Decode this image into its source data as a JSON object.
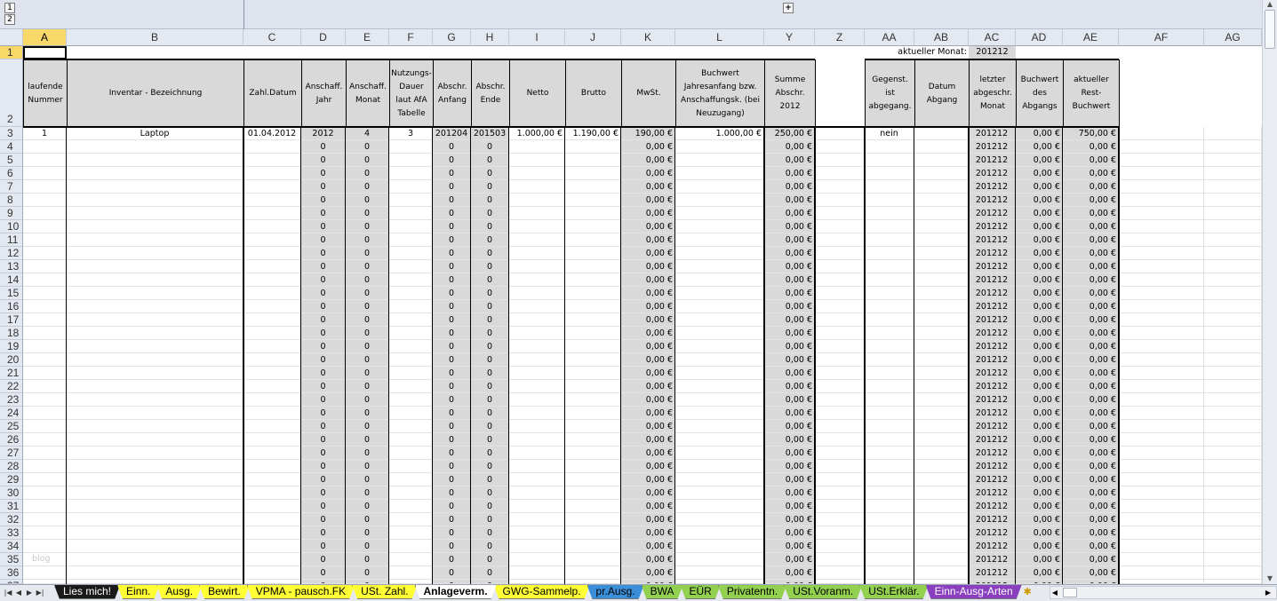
{
  "outline": {
    "level1": "1",
    "level2": "2",
    "expand": "+"
  },
  "columns": [
    "A",
    "B",
    "C",
    "D",
    "E",
    "F",
    "G",
    "H",
    "I",
    "J",
    "K",
    "L",
    "Y",
    "Z",
    "AA",
    "AB",
    "AC",
    "AD",
    "AE",
    "AF",
    "AG"
  ],
  "selected_column": "A",
  "selected_row": 1,
  "row1": {
    "label": "aktueller Monat:",
    "value": "201212"
  },
  "headers": {
    "A": "laufende Nummer",
    "B": "Inventar - Bezeichnung",
    "C": "Zahl.Datum",
    "D": "Anschaff. Jahr",
    "E": "Anschaff. Monat",
    "F": "Nutzungs-Dauer laut AfA Tabelle",
    "G": "Abschr. Anfang",
    "H": "Abschr. Ende",
    "I": "Netto",
    "J": "Brutto",
    "K": "MwSt.",
    "L": "Buchwert Jahresanfang bzw. Anschaffungsk. (bei Neuzugang)",
    "Y": "Summe Abschr. 2012",
    "AA": "Gegenst. ist abgegang.",
    "AB": "Datum Abgang",
    "AC": "letzter abgeschr. Monat",
    "AD": "Buchwert des Abgangs",
    "AE": "aktueller Rest-Buchwert"
  },
  "row3": {
    "A": "1",
    "B": "Laptop",
    "C": "01.04.2012",
    "D": "2012",
    "E": "4",
    "F": "3",
    "G": "201204",
    "H": "201503",
    "I": "1.000,00 €",
    "J": "1.190,00 €",
    "K": "190,00 €",
    "L": "1.000,00 €",
    "Y": "250,00 €",
    "AA": "nein",
    "AC": "201212",
    "AD": "0,00 €",
    "AE": "750,00 €"
  },
  "repeated_rows": {
    "from": 4,
    "to": 37,
    "cells": {
      "D": "0",
      "E": "0",
      "G": "0",
      "H": "0",
      "K": "0,00 €",
      "Y": "0,00 €",
      "AC": "201212",
      "AD": "0,00 €",
      "AE": "0,00 €"
    }
  },
  "watermark": {
    "row": 35,
    "text": "blog"
  },
  "tabs": [
    {
      "label": "Lies mich!",
      "bg": "#1a1a1a",
      "fg": "#ffffff"
    },
    {
      "label": "Einn.",
      "bg": "#ffff33",
      "fg": "#000000"
    },
    {
      "label": "Ausg.",
      "bg": "#ffff33",
      "fg": "#000000"
    },
    {
      "label": "Bewirt.",
      "bg": "#ffff33",
      "fg": "#000000"
    },
    {
      "label": "VPMA - pausch.FK",
      "bg": "#ffff33",
      "fg": "#000000"
    },
    {
      "label": "USt. Zahl.",
      "bg": "#ffff33",
      "fg": "#000000"
    },
    {
      "label": "Anlageverm.",
      "bg": "#ffffff",
      "fg": "#000000",
      "active": true
    },
    {
      "label": "GWG-Sammelp.",
      "bg": "#ffff33",
      "fg": "#000000"
    },
    {
      "label": "pr.Ausg.",
      "bg": "#3b8fd8",
      "fg": "#000000"
    },
    {
      "label": "BWA",
      "bg": "#92d050",
      "fg": "#000000"
    },
    {
      "label": "EÜR",
      "bg": "#92d050",
      "fg": "#000000"
    },
    {
      "label": "Privatentn.",
      "bg": "#92d050",
      "fg": "#000000"
    },
    {
      "label": "USt.Voranm.",
      "bg": "#92d050",
      "fg": "#000000"
    },
    {
      "label": "USt.Erklär.",
      "bg": "#92d050",
      "fg": "#000000"
    },
    {
      "label": "Einn-Ausg-Arten",
      "bg": "#8a3fbf",
      "fg": "#ffffff"
    }
  ]
}
